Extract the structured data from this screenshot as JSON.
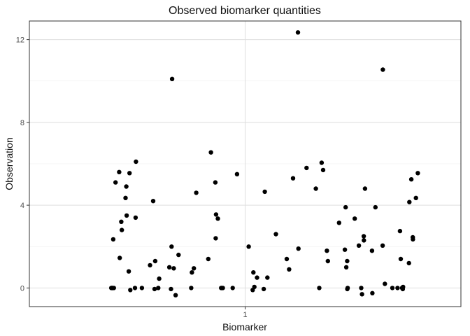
{
  "chart_data": {
    "type": "scatter",
    "title": "Observed biomarker quantities",
    "xlabel": "Biomarker",
    "ylabel": "Observation",
    "x_categories": [
      "1"
    ],
    "ylim": [
      -0.9,
      12.9
    ],
    "xlim": [
      0.4,
      1.6
    ],
    "y_ticks": [
      0,
      4,
      8,
      12
    ],
    "grid": true,
    "points": [
      {
        "x": 0.6278,
        "y": 0.0
      },
      {
        "x": 0.6296,
        "y": 0.0
      },
      {
        "x": 0.6299,
        "y": 0.0
      },
      {
        "x": 0.6309,
        "y": 0.0
      },
      {
        "x": 0.6349,
        "y": 0.0
      },
      {
        "x": 0.6332,
        "y": 2.35
      },
      {
        "x": 0.6396,
        "y": 5.1
      },
      {
        "x": 0.6498,
        "y": 5.6
      },
      {
        "x": 0.6513,
        "y": 1.45
      },
      {
        "x": 0.6555,
        "y": 3.2
      },
      {
        "x": 0.6571,
        "y": 2.8
      },
      {
        "x": 0.6674,
        "y": 4.35
      },
      {
        "x": 0.6695,
        "y": 4.9
      },
      {
        "x": 0.6706,
        "y": 3.5
      },
      {
        "x": 0.6764,
        "y": 0.8
      },
      {
        "x": 0.6785,
        "y": 5.55
      },
      {
        "x": 0.6806,
        "y": -0.1
      },
      {
        "x": 0.6936,
        "y": 0.0
      },
      {
        "x": 0.6954,
        "y": 3.4
      },
      {
        "x": 0.6964,
        "y": 6.1
      },
      {
        "x": 0.713,
        "y": 0.0
      },
      {
        "x": 0.7354,
        "y": 1.1
      },
      {
        "x": 0.7443,
        "y": 4.2
      },
      {
        "x": 0.7482,
        "y": -0.05
      },
      {
        "x": 0.7498,
        "y": 1.3
      },
      {
        "x": 0.7585,
        "y": 0.0
      },
      {
        "x": 0.7609,
        "y": 0.45
      },
      {
        "x": 0.7892,
        "y": 1.0
      },
      {
        "x": 0.7938,
        "y": -0.05
      },
      {
        "x": 0.7954,
        "y": 2.0
      },
      {
        "x": 0.797,
        "y": 10.1
      },
      {
        "x": 0.8014,
        "y": 0.95
      },
      {
        "x": 0.8067,
        "y": -0.35
      },
      {
        "x": 0.8149,
        "y": 1.6
      },
      {
        "x": 0.85,
        "y": 0.0
      },
      {
        "x": 0.852,
        "y": 0.75
      },
      {
        "x": 0.8574,
        "y": 0.95
      },
      {
        "x": 0.8641,
        "y": 4.6
      },
      {
        "x": 0.8975,
        "y": 1.4
      },
      {
        "x": 0.9049,
        "y": 6.55
      },
      {
        "x": 0.9172,
        "y": 5.1
      },
      {
        "x": 0.9181,
        "y": 2.4
      },
      {
        "x": 0.9191,
        "y": 3.55
      },
      {
        "x": 0.9241,
        "y": 3.35
      },
      {
        "x": 0.9332,
        "y": 0.0
      },
      {
        "x": 0.9351,
        "y": 0.0
      },
      {
        "x": 0.938,
        "y": 0.0
      },
      {
        "x": 0.9653,
        "y": 0.0
      },
      {
        "x": 0.9774,
        "y": 5.5
      },
      {
        "x": 1.0099,
        "y": 2.0
      },
      {
        "x": 1.021,
        "y": -0.1
      },
      {
        "x": 1.023,
        "y": 0.75
      },
      {
        "x": 1.0257,
        "y": 0.05
      },
      {
        "x": 1.0331,
        "y": 0.5
      },
      {
        "x": 1.0517,
        "y": -0.05
      },
      {
        "x": 1.0547,
        "y": 4.65
      },
      {
        "x": 1.0619,
        "y": 0.5
      },
      {
        "x": 1.0855,
        "y": 2.6
      },
      {
        "x": 1.1157,
        "y": 1.4
      },
      {
        "x": 1.1223,
        "y": 0.9
      },
      {
        "x": 1.1333,
        "y": 5.3
      },
      {
        "x": 1.1468,
        "y": 12.35
      },
      {
        "x": 1.1482,
        "y": 1.9
      },
      {
        "x": 1.1707,
        "y": 5.8
      },
      {
        "x": 1.1966,
        "y": 4.8
      },
      {
        "x": 1.2061,
        "y": 0.0
      },
      {
        "x": 1.2127,
        "y": 6.05
      },
      {
        "x": 1.2169,
        "y": 5.7
      },
      {
        "x": 1.2274,
        "y": 1.8
      },
      {
        "x": 1.23,
        "y": 1.3
      },
      {
        "x": 1.2612,
        "y": 3.15
      },
      {
        "x": 1.2774,
        "y": 1.85
      },
      {
        "x": 1.2795,
        "y": 3.9
      },
      {
        "x": 1.2812,
        "y": 1.0
      },
      {
        "x": 1.2838,
        "y": 1.3
      },
      {
        "x": 1.2841,
        "y": -0.05
      },
      {
        "x": 1.2851,
        "y": 0.0
      },
      {
        "x": 1.3048,
        "y": 3.35
      },
      {
        "x": 1.3163,
        "y": 2.05
      },
      {
        "x": 1.3228,
        "y": 0.0
      },
      {
        "x": 1.3249,
        "y": -0.3
      },
      {
        "x": 1.3299,
        "y": 2.5
      },
      {
        "x": 1.3302,
        "y": 2.3
      },
      {
        "x": 1.3333,
        "y": 4.8
      },
      {
        "x": 1.3528,
        "y": 1.8
      },
      {
        "x": 1.3538,
        "y": -0.25
      },
      {
        "x": 1.3623,
        "y": 3.9
      },
      {
        "x": 1.3824,
        "y": 2.05
      },
      {
        "x": 1.3829,
        "y": 10.55
      },
      {
        "x": 1.3885,
        "y": 0.2
      },
      {
        "x": 1.4094,
        "y": 0.0
      },
      {
        "x": 1.4237,
        "y": 0.0
      },
      {
        "x": 1.4306,
        "y": 2.75
      },
      {
        "x": 1.4327,
        "y": 1.4
      },
      {
        "x": 1.4364,
        "y": 0.0
      },
      {
        "x": 1.4383,
        "y": -0.05
      },
      {
        "x": 1.4391,
        "y": 0.05
      },
      {
        "x": 1.4555,
        "y": 1.2
      },
      {
        "x": 1.4566,
        "y": 4.15
      },
      {
        "x": 1.4622,
        "y": 5.25
      },
      {
        "x": 1.4662,
        "y": 2.45
      },
      {
        "x": 1.4666,
        "y": 2.35
      },
      {
        "x": 1.4749,
        "y": 4.35
      },
      {
        "x": 1.4801,
        "y": 5.55
      }
    ]
  }
}
